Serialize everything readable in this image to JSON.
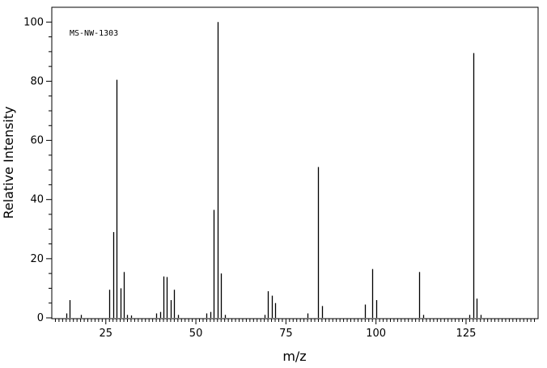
{
  "chart_data": {
    "type": "bar",
    "title": "",
    "annotation": "MS-NW-1303",
    "xlabel": "m/z",
    "ylabel": "Relative Intensity",
    "xlim": [
      10,
      145
    ],
    "ylim": [
      0,
      105
    ],
    "xticks": [
      25,
      50,
      75,
      100,
      125
    ],
    "yticks": [
      0,
      20,
      40,
      60,
      80,
      100
    ],
    "grid": false,
    "legend": "none",
    "series": [
      {
        "x": [
          14,
          15,
          18,
          26,
          27,
          28,
          29,
          30,
          31,
          32,
          39,
          40,
          41,
          42,
          43,
          44,
          45,
          53,
          54,
          55,
          56,
          57,
          58,
          69,
          70,
          71,
          72,
          81,
          84,
          85,
          97,
          99,
          100,
          112,
          113,
          126,
          127,
          128,
          129
        ],
        "y": [
          1.5,
          6,
          1,
          9.5,
          29,
          80.5,
          10,
          15.5,
          1,
          0.8,
          1.5,
          2,
          14,
          13.8,
          6,
          9.5,
          1,
          1.5,
          2,
          36.5,
          100,
          15,
          1,
          1,
          9,
          7.5,
          5,
          1.5,
          51,
          4,
          4.5,
          16.5,
          6,
          15.5,
          1,
          1,
          89.5,
          6.5,
          1
        ]
      }
    ]
  }
}
